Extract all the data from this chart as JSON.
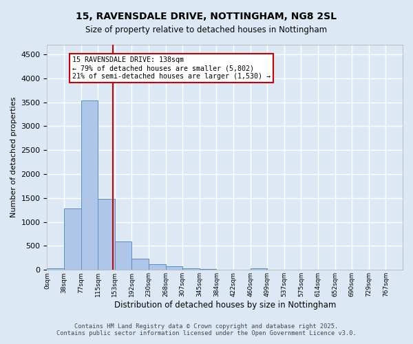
{
  "title_line1": "15, RAVENSDALE DRIVE, NOTTINGHAM, NG8 2SL",
  "title_line2": "Size of property relative to detached houses in Nottingham",
  "xlabel": "Distribution of detached houses by size in Nottingham",
  "ylabel": "Number of detached properties",
  "footer_line1": "Contains HM Land Registry data © Crown copyright and database right 2025.",
  "footer_line2": "Contains public sector information licensed under the Open Government Licence v3.0.",
  "bin_labels": [
    "0sqm",
    "38sqm",
    "77sqm",
    "115sqm",
    "153sqm",
    "192sqm",
    "230sqm",
    "268sqm",
    "307sqm",
    "345sqm",
    "384sqm",
    "422sqm",
    "460sqm",
    "499sqm",
    "537sqm",
    "575sqm",
    "614sqm",
    "652sqm",
    "690sqm",
    "729sqm",
    "767sqm"
  ],
  "bar_values": [
    30,
    1280,
    3540,
    1490,
    590,
    240,
    115,
    75,
    35,
    20,
    10,
    5,
    40,
    0,
    0,
    0,
    0,
    0,
    0,
    0
  ],
  "bar_color": "#aec6e8",
  "bar_edge_color": "#5a8fc2",
  "annotation_text": "15 RAVENSDALE DRIVE: 138sqm\n← 79% of detached houses are smaller (5,802)\n21% of semi-detached houses are larger (1,530) →",
  "annotation_box_color": "#ffffff",
  "annotation_box_edge": "#cc0000",
  "vline_color": "#cc0000",
  "vline_x": 3.87,
  "ylim": [
    0,
    4700
  ],
  "yticks": [
    0,
    500,
    1000,
    1500,
    2000,
    2500,
    3000,
    3500,
    4000,
    4500
  ],
  "background_color": "#dce9f5",
  "plot_bg_color": "#dce9f5",
  "grid_color": "#ffffff"
}
